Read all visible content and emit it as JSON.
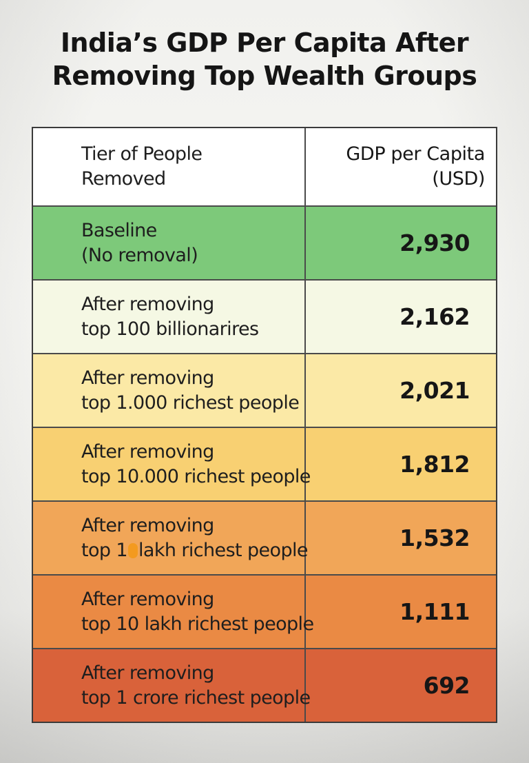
{
  "title": {
    "line1": "India’s GDP Per Capita After",
    "line2": "Removing Top Wealth Groups"
  },
  "chart_data": {
    "type": "table",
    "title": "India’s GDP Per Capita After Removing Top Wealth Groups",
    "columns": {
      "tier_line1": "Tier of People",
      "tier_line2": "Removed",
      "value_line1": "GDP per Capita",
      "value_line2": "(USD)"
    },
    "rows": [
      {
        "line1": "Baseline",
        "line2": "(No removal)",
        "value": 2930,
        "value_label": "2,930",
        "color": "#7dc97a"
      },
      {
        "line1": "After removing",
        "line2": "top 100 billionarires",
        "value": 2162,
        "value_label": "2,162",
        "color": "#f5f8e4"
      },
      {
        "line1": "After removing",
        "line2": "top 1.000 richest people",
        "value": 2021,
        "value_label": "2,021",
        "color": "#fbe9a6"
      },
      {
        "line1": "After removing",
        "line2": "top 10.000 richest people",
        "value": 1812,
        "value_label": "1,812",
        "color": "#f8d072"
      },
      {
        "line1": "After removing",
        "line2_pre": "top 1",
        "line2_post": "lakh richest people",
        "value": 1532,
        "value_label": "1,532",
        "color": "#f1a658"
      },
      {
        "line1": "After removing",
        "line2": "top 10 lakh richest people",
        "value": 1111,
        "value_label": "1,111",
        "color": "#ea8a44"
      },
      {
        "line1": "After removing",
        "line2": "top 1 crore richest people",
        "value": 692,
        "value_label": "692",
        "color": "#d9623a"
      }
    ]
  }
}
